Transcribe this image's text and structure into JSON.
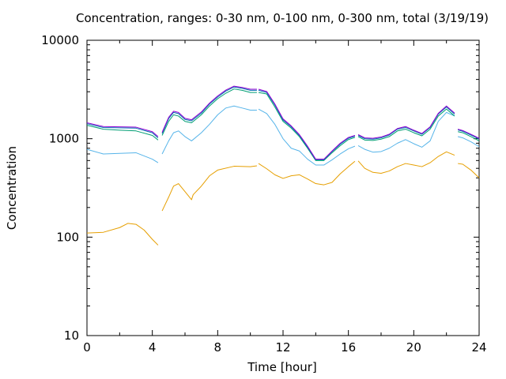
{
  "chart_data": {
    "type": "line",
    "title": "Concentration, ranges: 0-30 nm, 0-100 nm, 0-300 nm, total (3/19/19)",
    "xlabel": "Time [hour]",
    "ylabel": "Concentration",
    "xlim": [
      0,
      24
    ],
    "ylim": [
      10,
      10000
    ],
    "yscale": "log",
    "grid": false,
    "legend": "none",
    "x_ticks": [
      "0",
      "4",
      "8",
      "12",
      "16",
      "20",
      "24"
    ],
    "y_ticks": [
      "10",
      "100",
      "1000",
      "10000"
    ],
    "series": [
      {
        "color": "#e69f00",
        "x": [
          0,
          1,
          2,
          2.5,
          3,
          3.5,
          4,
          4.35,
          null,
          4.6,
          5,
          5.3,
          5.6,
          6,
          6.4,
          6.5,
          7,
          7.5,
          8,
          9,
          10,
          10.4,
          null,
          10.5,
          11,
          11.5,
          12,
          12.5,
          13,
          13.5,
          14,
          14.5,
          15,
          15.5,
          16,
          16.4,
          null,
          16.6,
          17,
          17.5,
          18,
          18.5,
          19,
          19.5,
          20,
          20.5,
          21,
          21.5,
          22,
          22.5,
          null,
          22.7,
          23,
          23.5,
          24
        ],
        "y": [
          110,
          112,
          125,
          138,
          135,
          118,
          95,
          83,
          null,
          185,
          255,
          330,
          350,
          290,
          240,
          270,
          330,
          420,
          480,
          525,
          520,
          530,
          null,
          560,
          495,
          430,
          395,
          420,
          430,
          390,
          350,
          340,
          360,
          440,
          520,
          590,
          null,
          595,
          500,
          455,
          445,
          470,
          520,
          560,
          540,
          520,
          570,
          660,
          735,
          680,
          null,
          560,
          550,
          480,
          400
        ]
      },
      {
        "color": "#56b4e9",
        "x": [
          0,
          1,
          2,
          3,
          4,
          4.35,
          null,
          4.6,
          5,
          5.3,
          5.6,
          6,
          6.4,
          7,
          7.5,
          8,
          8.5,
          9,
          9.5,
          10,
          10.4,
          null,
          10.5,
          11,
          11.5,
          12,
          12.5,
          13,
          13.5,
          14,
          14.5,
          15,
          15.5,
          16,
          16.4,
          null,
          16.6,
          17,
          17.5,
          18,
          18.5,
          19,
          19.5,
          20,
          20.5,
          21,
          21.5,
          22,
          22.5,
          null,
          22.7,
          23,
          23.5,
          24
        ],
        "y": [
          780,
          700,
          710,
          720,
          620,
          570,
          null,
          700,
          950,
          1150,
          1200,
          1050,
          950,
          1150,
          1400,
          1750,
          2050,
          2150,
          2050,
          1950,
          1950,
          null,
          2000,
          1800,
          1400,
          1000,
          800,
          750,
          620,
          540,
          540,
          610,
          700,
          790,
          840,
          null,
          850,
          780,
          730,
          740,
          800,
          900,
          980,
          890,
          820,
          950,
          1500,
          1850,
          1700,
          null,
          1050,
          1020,
          930,
          830
        ]
      },
      {
        "color": "#009e73",
        "x": [
          0,
          1,
          2,
          3,
          4,
          4.35,
          null,
          4.6,
          5,
          5.3,
          5.6,
          6,
          6.4,
          7,
          7.5,
          8,
          8.5,
          9,
          9.5,
          10,
          10.4,
          null,
          10.5,
          11,
          11.5,
          12,
          12.5,
          13,
          13.5,
          14,
          14.5,
          15,
          15.5,
          16,
          16.4,
          null,
          16.6,
          17,
          17.5,
          18,
          18.5,
          19,
          19.5,
          20,
          20.5,
          21,
          21.5,
          22,
          22.5,
          null,
          22.7,
          23,
          23.5,
          24
        ],
        "y": [
          1370,
          1250,
          1220,
          1200,
          1080,
          970,
          null,
          1080,
          1500,
          1750,
          1700,
          1500,
          1450,
          1750,
          2150,
          2550,
          2900,
          3200,
          3100,
          2950,
          2950,
          null,
          2950,
          2850,
          2100,
          1500,
          1280,
          1050,
          800,
          600,
          600,
          720,
          850,
          980,
          1030,
          null,
          1050,
          970,
          960,
          990,
          1050,
          1200,
          1250,
          1150,
          1070,
          1250,
          1700,
          2000,
          1700,
          null,
          1180,
          1150,
          1050,
          950
        ]
      },
      {
        "color": "#0072b2",
        "x": [
          0,
          1,
          2,
          3,
          4,
          4.35,
          null,
          4.6,
          5,
          5.3,
          5.6,
          6,
          6.4,
          7,
          7.5,
          8,
          8.5,
          9,
          9.5,
          10,
          10.4,
          null,
          10.5,
          11,
          11.5,
          12,
          12.5,
          13,
          13.5,
          14,
          14.5,
          15,
          15.5,
          16,
          16.4,
          null,
          16.6,
          17,
          17.5,
          18,
          18.5,
          19,
          19.5,
          20,
          20.5,
          21,
          21.5,
          22,
          22.5,
          null,
          22.7,
          23,
          23.5,
          24
        ],
        "y": [
          1420,
          1300,
          1290,
          1280,
          1150,
          1020,
          null,
          1130,
          1600,
          1850,
          1800,
          1570,
          1520,
          1820,
          2250,
          2650,
          3050,
          3350,
          3250,
          3100,
          3100,
          null,
          3100,
          2950,
          2200,
          1550,
          1320,
          1080,
          820,
          610,
          610,
          740,
          880,
          1010,
          1060,
          null,
          1080,
          1000,
          990,
          1020,
          1090,
          1250,
          1300,
          1200,
          1110,
          1300,
          1780,
          2100,
          1780,
          null,
          1230,
          1190,
          1090,
          990
        ]
      },
      {
        "color": "#9400d3",
        "x": [
          0,
          1,
          2,
          3,
          4,
          4.35,
          null,
          4.6,
          5,
          5.3,
          5.6,
          6,
          6.4,
          7,
          7.5,
          8,
          8.5,
          9,
          9.5,
          10,
          10.4,
          null,
          10.5,
          11,
          11.5,
          12,
          12.5,
          13,
          13.5,
          14,
          14.5,
          15,
          15.5,
          16,
          16.4,
          null,
          16.6,
          17,
          17.5,
          18,
          18.5,
          19,
          19.5,
          20,
          20.5,
          21,
          21.5,
          22,
          22.5,
          null,
          22.7,
          23,
          23.5,
          24
        ],
        "y": [
          1450,
          1330,
          1320,
          1310,
          1180,
          1050,
          null,
          1160,
          1650,
          1900,
          1850,
          1610,
          1560,
          1870,
          2300,
          2720,
          3120,
          3420,
          3320,
          3180,
          3180,
          null,
          3180,
          3020,
          2250,
          1590,
          1350,
          1100,
          840,
          620,
          620,
          750,
          900,
          1030,
          1080,
          null,
          1100,
          1020,
          1010,
          1040,
          1110,
          1270,
          1330,
          1220,
          1130,
          1320,
          1810,
          2150,
          1820,
          null,
          1250,
          1210,
          1110,
          1010
        ]
      }
    ]
  }
}
